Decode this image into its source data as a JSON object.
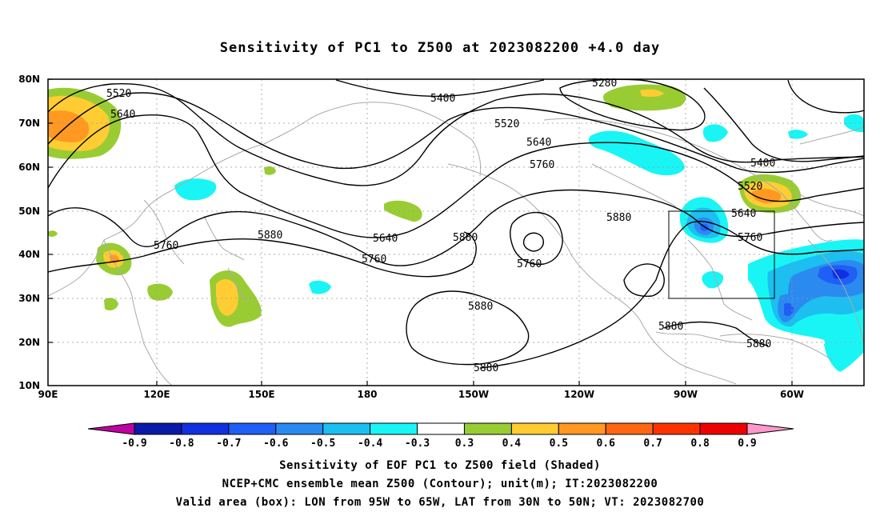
{
  "title": "Sensitivity of PC1 to Z500 at 2023082200 +4.0 day",
  "lat_ticks": [
    "80N",
    "70N",
    "60N",
    "50N",
    "40N",
    "30N",
    "20N",
    "10N"
  ],
  "lon_ticks": [
    "90E",
    "120E",
    "150E",
    "180",
    "150W",
    "120W",
    "90W",
    "60W"
  ],
  "contour_labels": [
    {
      "text": "5520"
    },
    {
      "text": "5640"
    },
    {
      "text": "5280"
    },
    {
      "text": "5400"
    },
    {
      "text": "5520"
    },
    {
      "text": "5640"
    },
    {
      "text": "5760"
    },
    {
      "text": "5400"
    },
    {
      "text": "5520"
    },
    {
      "text": "5640"
    },
    {
      "text": "5760"
    },
    {
      "text": "5880"
    },
    {
      "text": "5760"
    },
    {
      "text": "5640"
    },
    {
      "text": "5760"
    },
    {
      "text": "5880"
    },
    {
      "text": "5760"
    },
    {
      "text": "5880"
    },
    {
      "text": "5880"
    },
    {
      "text": "5880"
    },
    {
      "text": "5880"
    },
    {
      "text": "5880"
    }
  ],
  "colorbar": {
    "colors": [
      "#c000a0",
      "#0a1aa8",
      "#1030e0",
      "#1f5ff5",
      "#2a8af0",
      "#1cbff0",
      "#19f5f5",
      "#ffffff",
      "#99cc33",
      "#ffcc33",
      "#ff9922",
      "#ff6611",
      "#ff3300",
      "#ee0000",
      "#ff99cc"
    ],
    "labels": [
      "-0.9",
      "-0.8",
      "-0.7",
      "-0.6",
      "-0.5",
      "-0.4",
      "-0.3",
      "0.3",
      "0.4",
      "0.5",
      "0.6",
      "0.7",
      "0.8",
      "0.9"
    ]
  },
  "captions": {
    "line1": "Sensitivity of EOF PC1 to Z500 field (Shaded)",
    "line2": "NCEP+CMC ensemble mean Z500 (Contour); unit(m); IT:2023082200",
    "line3": "Valid area (box): LON from 95W to 65W, LAT from 30N to 50N; VT: 2023082700"
  },
  "valid_box": {
    "lon_from": "95W",
    "lon_to": "65W",
    "lat_from": "30N",
    "lat_to": "50N"
  }
}
